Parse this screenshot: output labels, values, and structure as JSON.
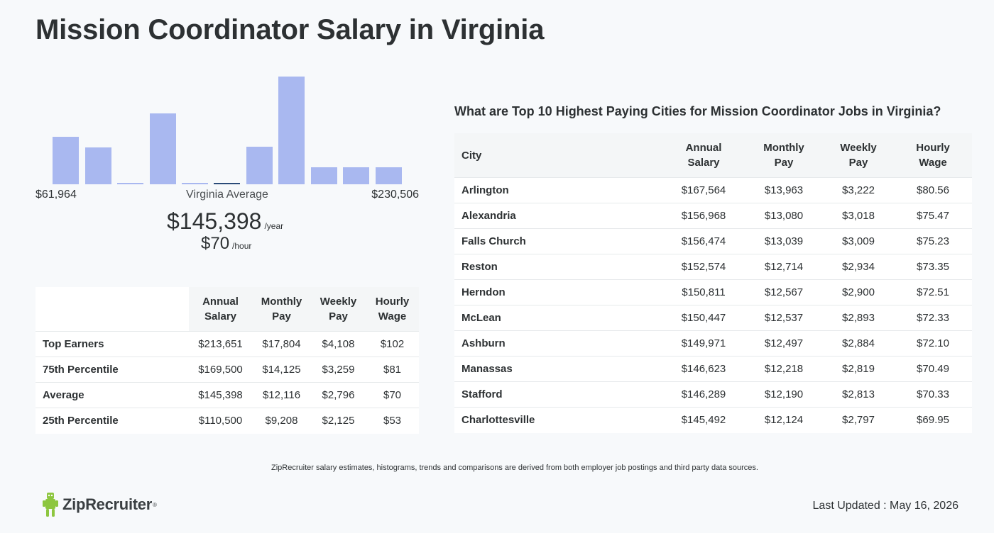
{
  "page": {
    "title": "Mission Coordinator Salary in Virginia",
    "disclaimer": "ZipRecruiter salary estimates, histograms, trends and comparisons are derived from both employer job postings and third party data sources.",
    "last_updated": "Last Updated : May 16, 2026",
    "brand": "ZipRecruiter",
    "brand_mark": "®"
  },
  "colors": {
    "bar": "#a9b8f0",
    "bar_active": "#2b4b78",
    "logo_green": "#8dc63f"
  },
  "histogram": {
    "min_label": "$61,964",
    "max_label": "$230,506",
    "mid_label": "Virginia Average",
    "bars": [
      {
        "value": 0.44,
        "active": false
      },
      {
        "value": 0.34,
        "active": false
      },
      {
        "value": 0.01,
        "active": false
      },
      {
        "value": 0.66,
        "active": false
      },
      {
        "value": 0.01,
        "active": false
      },
      {
        "value": 0.01,
        "active": true
      },
      {
        "value": 0.35,
        "active": false
      },
      {
        "value": 1.0,
        "active": false
      },
      {
        "value": 0.16,
        "active": false
      },
      {
        "value": 0.16,
        "active": false
      },
      {
        "value": 0.16,
        "active": false
      }
    ]
  },
  "average": {
    "year_value": "$145,398",
    "year_unit": "/year",
    "hour_value": "$70",
    "hour_unit": "/hour"
  },
  "percentile_table": {
    "headers": [
      [
        "Annual",
        "Salary"
      ],
      [
        "Monthly",
        "Pay"
      ],
      [
        "Weekly",
        "Pay"
      ],
      [
        "Hourly",
        "Wage"
      ]
    ],
    "rows": [
      {
        "label": "Top Earners",
        "values": [
          "$213,651",
          "$17,804",
          "$4,108",
          "$102"
        ]
      },
      {
        "label": "75th Percentile",
        "values": [
          "$169,500",
          "$14,125",
          "$3,259",
          "$81"
        ]
      },
      {
        "label": "Average",
        "values": [
          "$145,398",
          "$12,116",
          "$2,796",
          "$70"
        ]
      },
      {
        "label": "25th Percentile",
        "values": [
          "$110,500",
          "$9,208",
          "$2,125",
          "$53"
        ]
      }
    ]
  },
  "cities_table": {
    "heading": "What are Top 10 Highest Paying Cities for Mission Coordinator Jobs in Virginia?",
    "city_header": "City",
    "headers": [
      [
        "Annual",
        "Salary"
      ],
      [
        "Monthly",
        "Pay"
      ],
      [
        "Weekly",
        "Pay"
      ],
      [
        "Hourly",
        "Wage"
      ]
    ],
    "rows": [
      {
        "city": "Arlington",
        "values": [
          "$167,564",
          "$13,963",
          "$3,222",
          "$80.56"
        ]
      },
      {
        "city": "Alexandria",
        "values": [
          "$156,968",
          "$13,080",
          "$3,018",
          "$75.47"
        ]
      },
      {
        "city": "Falls Church",
        "values": [
          "$156,474",
          "$13,039",
          "$3,009",
          "$75.23"
        ]
      },
      {
        "city": "Reston",
        "values": [
          "$152,574",
          "$12,714",
          "$2,934",
          "$73.35"
        ]
      },
      {
        "city": "Herndon",
        "values": [
          "$150,811",
          "$12,567",
          "$2,900",
          "$72.51"
        ]
      },
      {
        "city": "McLean",
        "values": [
          "$150,447",
          "$12,537",
          "$2,893",
          "$72.33"
        ]
      },
      {
        "city": "Ashburn",
        "values": [
          "$149,971",
          "$12,497",
          "$2,884",
          "$72.10"
        ]
      },
      {
        "city": "Manassas",
        "values": [
          "$146,623",
          "$12,218",
          "$2,819",
          "$70.49"
        ]
      },
      {
        "city": "Stafford",
        "values": [
          "$146,289",
          "$12,190",
          "$2,813",
          "$70.33"
        ]
      },
      {
        "city": "Charlottesville",
        "values": [
          "$145,492",
          "$12,124",
          "$2,797",
          "$69.95"
        ]
      }
    ]
  }
}
